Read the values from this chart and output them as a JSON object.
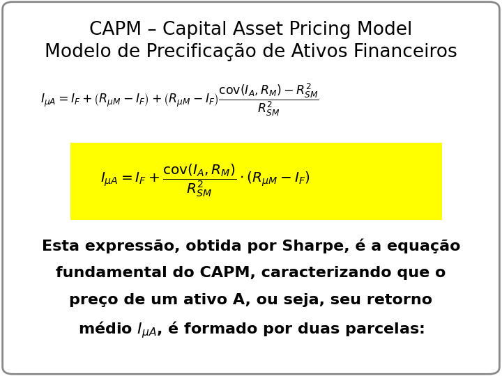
{
  "title_line1": "CAPM – Capital Asset Pricing Model",
  "title_line2": "Modelo de Precificação de Ativos Financeiros",
  "formula1": "$I_{\\mu A} = I_F + \\left(R_{\\mu M} - I_F\\right) + \\left(R_{\\mu M} - I_F\\right)\\dfrac{\\mathrm{cov}(I_A, R_M) - R^2_{SM}}{R^2_{SM}}$",
  "formula2": "$I_{\\mu A} = I_F + \\dfrac{\\mathrm{cov}(I_A, R_M)}{R^2_{SM}} \\cdot \\left(R_{\\mu M} - I_F\\right)$",
  "text_line1": "Esta expressão, obtida por Sharpe, é a equação",
  "text_line2": "fundamental do CAPM, caracterizando que o",
  "text_line3": "preço de um ativo A, ou seja, seu retorno",
  "text_line4": "médio $I_{\\mu A}$, é formado por duas parcelas:",
  "bg_color": "#ffffff",
  "border_color": "#888888",
  "title_color": "#000000",
  "formula_color": "#000000",
  "highlight_color": "#ffff00",
  "text_color": "#000000",
  "title_fontsize": 19,
  "formula1_fontsize": 12.5,
  "formula2_fontsize": 14.5,
  "text_fontsize": 16,
  "fig_width": 7.2,
  "fig_height": 5.4,
  "dpi": 100
}
